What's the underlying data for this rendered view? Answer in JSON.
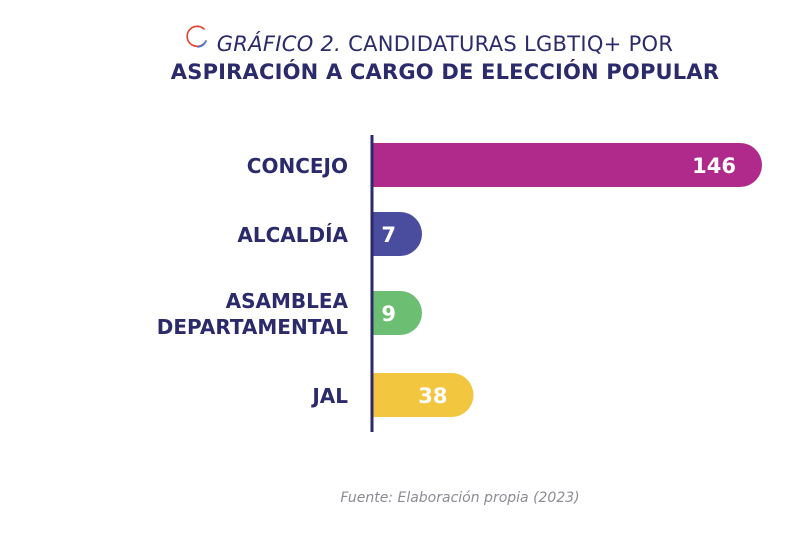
{
  "header": {
    "title_prefix": "GRÁFICO 2.",
    "title_rest": "CANDIDATURAS LGBTIQ+ POR",
    "title_line2": "ASPIRACIÓN A CARGO DE ELECCIÓN POPULAR"
  },
  "source": "Fuente: Elaboración propia (2023)",
  "colors": {
    "title": "#2b2a6b",
    "axis": "#2b2a6b"
  },
  "chart_data": {
    "type": "bar",
    "orientation": "horizontal",
    "categories": [
      [
        "CONCEJO"
      ],
      [
        "ALCALDÍA"
      ],
      [
        "ASAMBLEA",
        "DEPARTAMENTAL"
      ],
      [
        "JAL"
      ]
    ],
    "values": [
      146,
      7,
      9,
      38
    ],
    "colors": [
      "#b02a8b",
      "#4a4c9e",
      "#6cbf72",
      "#f2c63f"
    ],
    "xlim": [
      0,
      146
    ],
    "grid": false,
    "legend": "none"
  }
}
